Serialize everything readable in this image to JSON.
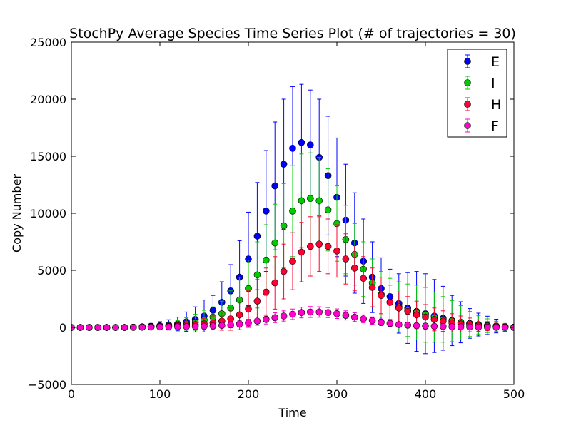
{
  "chart_data": {
    "type": "scatter",
    "title": "StochPy Average Species Time Series Plot (# of trajectories = 30)",
    "xlabel": "Time",
    "ylabel": "Copy Number",
    "xlim": [
      0,
      500
    ],
    "ylim": [
      -5000,
      25000
    ],
    "xticks": [
      "0",
      "100",
      "200",
      "300",
      "400",
      "500"
    ],
    "yticks": [
      "−5000",
      "0",
      "5000",
      "10000",
      "15000",
      "20000",
      "25000"
    ],
    "legend_position": "top-right",
    "x": [
      0,
      10,
      20,
      30,
      40,
      50,
      60,
      70,
      80,
      90,
      100,
      110,
      120,
      130,
      140,
      150,
      160,
      170,
      180,
      190,
      200,
      210,
      220,
      230,
      240,
      250,
      260,
      270,
      280,
      290,
      300,
      310,
      320,
      330,
      340,
      350,
      360,
      370,
      380,
      390,
      400,
      410,
      420,
      430,
      440,
      450,
      460,
      470,
      480,
      490,
      500
    ],
    "series": [
      {
        "name": "E",
        "color": "#0000ff",
        "values": [
          0,
          0,
          0,
          0,
          0,
          0,
          0,
          20,
          60,
          100,
          150,
          220,
          300,
          500,
          700,
          1000,
          1500,
          2200,
          3200,
          4400,
          6000,
          8000,
          10200,
          12400,
          14300,
          15700,
          16200,
          16000,
          14900,
          13300,
          11400,
          9400,
          7400,
          5800,
          4400,
          3400,
          2700,
          2100,
          1700,
          1400,
          1200,
          1000,
          800,
          600,
          450,
          350,
          250,
          180,
          120,
          70,
          30
        ],
        "errors": [
          0,
          0,
          0,
          0,
          0,
          0,
          0,
          80,
          150,
          250,
          350,
          450,
          600,
          850,
          1100,
          1400,
          1300,
          1800,
          2300,
          3200,
          4100,
          4700,
          5300,
          5600,
          5700,
          5400,
          5100,
          4800,
          5100,
          5200,
          5200,
          4900,
          4400,
          3700,
          3100,
          2700,
          2400,
          2600,
          3100,
          3500,
          3500,
          3200,
          2800,
          2200,
          1800,
          1300,
          1000,
          800,
          600,
          400,
          250
        ]
      },
      {
        "name": "I",
        "color": "#00cc00",
        "values": [
          0,
          0,
          0,
          0,
          0,
          0,
          0,
          10,
          30,
          60,
          100,
          150,
          200,
          300,
          450,
          650,
          900,
          1200,
          1700,
          2400,
          3400,
          4600,
          5900,
          7400,
          8900,
          10200,
          11100,
          11300,
          11100,
          10300,
          9100,
          7700,
          6400,
          5100,
          3900,
          2900,
          2200,
          1800,
          1500,
          1300,
          1100,
          900,
          700,
          550,
          400,
          300,
          220,
          150,
          90,
          50,
          20
        ],
        "errors": [
          0,
          0,
          0,
          0,
          0,
          0,
          0,
          50,
          100,
          150,
          250,
          300,
          400,
          550,
          700,
          850,
          900,
          1100,
          1500,
          2000,
          2500,
          2900,
          3100,
          3400,
          3700,
          4000,
          4100,
          4000,
          3800,
          3600,
          3300,
          3000,
          2700,
          2400,
          2100,
          2000,
          2100,
          2200,
          2300,
          2400,
          2400,
          2200,
          2000,
          1800,
          1500,
          1100,
          800,
          600,
          450,
          300,
          200
        ]
      },
      {
        "name": "H",
        "color": "#ff0033",
        "values": [
          0,
          0,
          0,
          0,
          0,
          0,
          0,
          10,
          20,
          40,
          70,
          100,
          150,
          200,
          250,
          300,
          400,
          550,
          750,
          1100,
          1600,
          2300,
          3100,
          3900,
          4900,
          5800,
          6600,
          7100,
          7300,
          7100,
          6700,
          6000,
          5200,
          4300,
          3500,
          2800,
          2200,
          1700,
          1400,
          1100,
          900,
          700,
          550,
          400,
          300,
          220,
          160,
          110,
          70,
          40,
          15
        ],
        "errors": [
          0,
          0,
          0,
          0,
          0,
          0,
          0,
          40,
          80,
          120,
          180,
          220,
          280,
          350,
          400,
          500,
          600,
          800,
          1000,
          1300,
          1600,
          1900,
          2100,
          2300,
          2400,
          2500,
          2600,
          2600,
          2400,
          2400,
          2300,
          2200,
          2000,
          1900,
          1700,
          1600,
          1500,
          1400,
          1300,
          1200,
          1100,
          1000,
          900,
          800,
          700,
          600,
          500,
          400,
          300,
          250,
          200
        ]
      },
      {
        "name": "F",
        "color": "#ff00cc",
        "values": [
          0,
          0,
          0,
          0,
          0,
          0,
          0,
          10,
          20,
          30,
          40,
          50,
          60,
          70,
          80,
          100,
          130,
          170,
          220,
          300,
          400,
          550,
          700,
          850,
          1000,
          1150,
          1300,
          1350,
          1350,
          1300,
          1200,
          1050,
          900,
          750,
          600,
          450,
          350,
          250,
          200,
          150,
          120,
          100,
          80,
          60,
          50,
          40,
          30,
          20,
          15,
          10,
          5
        ],
        "errors": [
          0,
          0,
          0,
          0,
          0,
          0,
          0,
          30,
          50,
          70,
          90,
          110,
          120,
          140,
          160,
          180,
          200,
          220,
          250,
          280,
          320,
          360,
          400,
          430,
          450,
          460,
          470,
          480,
          460,
          440,
          420,
          400,
          380,
          350,
          320,
          290,
          260,
          230,
          200,
          180,
          160,
          140,
          120,
          100,
          90,
          80,
          70,
          60,
          50,
          40,
          30
        ]
      }
    ]
  }
}
